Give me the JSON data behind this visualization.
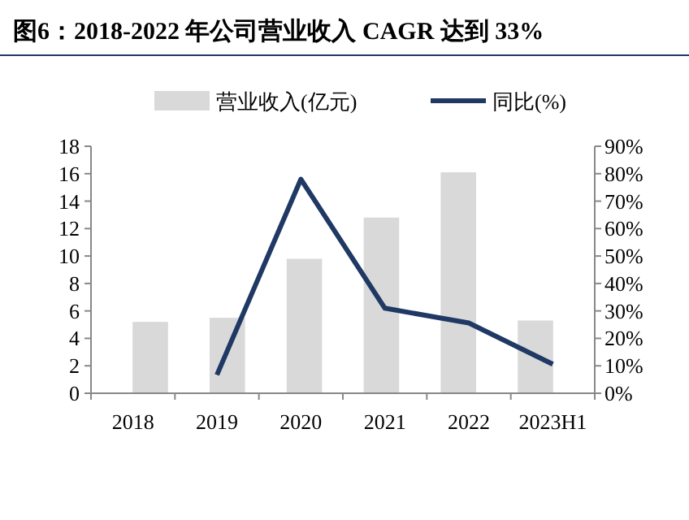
{
  "chart_data": {
    "type": "bar",
    "title": "图6：2018-2022 年公司营业收入 CAGR 达到 33%",
    "categories": [
      "2018",
      "2019",
      "2020",
      "2021",
      "2022",
      "2023H1"
    ],
    "series": [
      {
        "name": "营业收入(亿元)",
        "color": "#d9d9d9",
        "values": [
          5.2,
          5.5,
          9.8,
          12.8,
          16.1,
          5.3
        ]
      },
      {
        "name": "同比(%)",
        "type": "line",
        "axis": "y2",
        "color": "#1f3864",
        "values": [
          null,
          6.7,
          78,
          31,
          25.6,
          10.6
        ]
      }
    ],
    "ylim": [
      0,
      18
    ],
    "yticks": [
      0,
      2,
      4,
      6,
      8,
      10,
      12,
      14,
      16,
      18
    ],
    "y2lim": [
      0,
      90
    ],
    "y2ticks": [
      {
        "value": 0,
        "label": "0%"
      },
      {
        "value": 10,
        "label": "10%"
      },
      {
        "value": 20,
        "label": "20%"
      },
      {
        "value": 30,
        "label": "30%"
      },
      {
        "value": 40,
        "label": "40%"
      },
      {
        "value": 50,
        "label": "50%"
      },
      {
        "value": 60,
        "label": "60%"
      },
      {
        "value": 70,
        "label": "70%"
      },
      {
        "value": 80,
        "label": "80%"
      },
      {
        "value": 90,
        "label": "90%"
      }
    ],
    "legend": "top",
    "grid": false,
    "marker": "none"
  }
}
